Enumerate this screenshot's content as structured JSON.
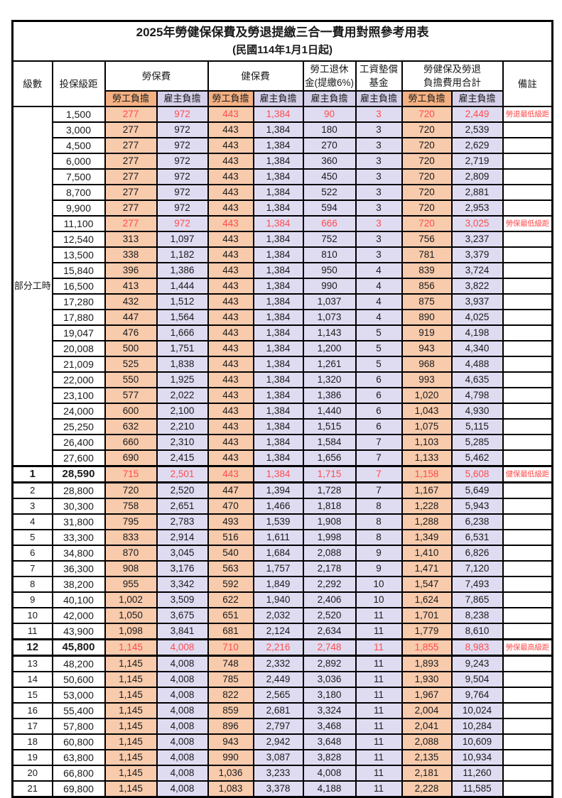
{
  "title": "2025年勞健保保費及勞退提繳三合一費用對照參考用表",
  "subtitle": "(民國114年1月1日起)",
  "header": {
    "level": "級數",
    "bracket": "投保級距",
    "labor_ins": "勞保費",
    "health_ins": "健保費",
    "pension_line1": "勞工退休",
    "pension_line2": "金(提繳6%)",
    "wage_fund_line1": "工資墊償",
    "wage_fund_line2": "基金",
    "total_line1": "勞健保及勞退",
    "total_line2": "負擔費用合計",
    "note": "備註",
    "employee": "勞工負擔",
    "employer": "雇主負擔"
  },
  "colors": {
    "sub_header_orange": "#F4B183",
    "sub_header_lavender": "#D6D0EA",
    "cell_orange": "#F8CBAD",
    "cell_lavender": "#DFDCF2",
    "red_text": "#FF4C4C",
    "border": "#000000"
  },
  "part_time_label": "部分工時",
  "rows": [
    {
      "level": "部分工時",
      "levelRowspan": 23,
      "bracket": "1,500",
      "values": [
        "277",
        "972",
        "443",
        "1,384",
        "90",
        "3",
        "720",
        "2,449"
      ],
      "note": "勞退最低級距",
      "red": true
    },
    {
      "bracket": "3,000",
      "values": [
        "277",
        "972",
        "443",
        "1,384",
        "180",
        "3",
        "720",
        "2,539"
      ],
      "note": ""
    },
    {
      "bracket": "4,500",
      "values": [
        "277",
        "972",
        "443",
        "1,384",
        "270",
        "3",
        "720",
        "2,629"
      ],
      "note": ""
    },
    {
      "bracket": "6,000",
      "values": [
        "277",
        "972",
        "443",
        "1,384",
        "360",
        "3",
        "720",
        "2,719"
      ],
      "note": ""
    },
    {
      "bracket": "7,500",
      "values": [
        "277",
        "972",
        "443",
        "1,384",
        "450",
        "3",
        "720",
        "2,809"
      ],
      "note": ""
    },
    {
      "bracket": "8,700",
      "values": [
        "277",
        "972",
        "443",
        "1,384",
        "522",
        "3",
        "720",
        "2,881"
      ],
      "note": ""
    },
    {
      "bracket": "9,900",
      "values": [
        "277",
        "972",
        "443",
        "1,384",
        "594",
        "3",
        "720",
        "2,953"
      ],
      "note": ""
    },
    {
      "bracket": "11,100",
      "values": [
        "277",
        "972",
        "443",
        "1,384",
        "666",
        "3",
        "720",
        "3,025"
      ],
      "note": "勞保最低級距",
      "red": true
    },
    {
      "bracket": "12,540",
      "values": [
        "313",
        "1,097",
        "443",
        "1,384",
        "752",
        "3",
        "756",
        "3,237"
      ],
      "note": ""
    },
    {
      "bracket": "13,500",
      "values": [
        "338",
        "1,182",
        "443",
        "1,384",
        "810",
        "3",
        "781",
        "3,379"
      ],
      "note": ""
    },
    {
      "bracket": "15,840",
      "values": [
        "396",
        "1,386",
        "443",
        "1,384",
        "950",
        "4",
        "839",
        "3,724"
      ],
      "note": ""
    },
    {
      "bracket": "16,500",
      "values": [
        "413",
        "1,444",
        "443",
        "1,384",
        "990",
        "4",
        "856",
        "3,822"
      ],
      "note": ""
    },
    {
      "bracket": "17,280",
      "values": [
        "432",
        "1,512",
        "443",
        "1,384",
        "1,037",
        "4",
        "875",
        "3,937"
      ],
      "note": ""
    },
    {
      "bracket": "17,880",
      "values": [
        "447",
        "1,564",
        "443",
        "1,384",
        "1,073",
        "4",
        "890",
        "4,025"
      ],
      "note": ""
    },
    {
      "bracket": "19,047",
      "values": [
        "476",
        "1,666",
        "443",
        "1,384",
        "1,143",
        "5",
        "919",
        "4,198"
      ],
      "note": ""
    },
    {
      "bracket": "20,008",
      "values": [
        "500",
        "1,751",
        "443",
        "1,384",
        "1,200",
        "5",
        "943",
        "4,340"
      ],
      "note": ""
    },
    {
      "bracket": "21,009",
      "values": [
        "525",
        "1,838",
        "443",
        "1,384",
        "1,261",
        "5",
        "968",
        "4,488"
      ],
      "note": ""
    },
    {
      "bracket": "22,000",
      "values": [
        "550",
        "1,925",
        "443",
        "1,384",
        "1,320",
        "6",
        "993",
        "4,635"
      ],
      "note": ""
    },
    {
      "bracket": "23,100",
      "values": [
        "577",
        "2,022",
        "443",
        "1,384",
        "1,386",
        "6",
        "1,020",
        "4,798"
      ],
      "note": ""
    },
    {
      "bracket": "24,000",
      "values": [
        "600",
        "2,100",
        "443",
        "1,384",
        "1,440",
        "6",
        "1,043",
        "4,930"
      ],
      "note": ""
    },
    {
      "bracket": "25,250",
      "values": [
        "632",
        "2,210",
        "443",
        "1,384",
        "1,515",
        "6",
        "1,075",
        "5,115"
      ],
      "note": ""
    },
    {
      "bracket": "26,400",
      "values": [
        "660",
        "2,310",
        "443",
        "1,384",
        "1,584",
        "7",
        "1,103",
        "5,285"
      ],
      "note": ""
    },
    {
      "bracket": "27,600",
      "values": [
        "690",
        "2,415",
        "443",
        "1,384",
        "1,656",
        "7",
        "1,133",
        "5,462"
      ],
      "note": ""
    },
    {
      "level": "1",
      "bracket": "28,590",
      "values": [
        "715",
        "2,501",
        "443",
        "1,384",
        "1,715",
        "7",
        "1,158",
        "5,608"
      ],
      "note": "健保最低級距",
      "red": true,
      "key": true
    },
    {
      "level": "2",
      "bracket": "28,800",
      "values": [
        "720",
        "2,520",
        "447",
        "1,394",
        "1,728",
        "7",
        "1,167",
        "5,649"
      ],
      "note": ""
    },
    {
      "level": "3",
      "bracket": "30,300",
      "values": [
        "758",
        "2,651",
        "470",
        "1,466",
        "1,818",
        "8",
        "1,228",
        "5,943"
      ],
      "note": ""
    },
    {
      "level": "4",
      "bracket": "31,800",
      "values": [
        "795",
        "2,783",
        "493",
        "1,539",
        "1,908",
        "8",
        "1,288",
        "6,238"
      ],
      "note": ""
    },
    {
      "level": "5",
      "bracket": "33,300",
      "values": [
        "833",
        "2,914",
        "516",
        "1,611",
        "1,998",
        "8",
        "1,349",
        "6,531"
      ],
      "note": ""
    },
    {
      "level": "6",
      "bracket": "34,800",
      "values": [
        "870",
        "3,045",
        "540",
        "1,684",
        "2,088",
        "9",
        "1,410",
        "6,826"
      ],
      "note": ""
    },
    {
      "level": "7",
      "bracket": "36,300",
      "values": [
        "908",
        "3,176",
        "563",
        "1,757",
        "2,178",
        "9",
        "1,471",
        "7,120"
      ],
      "note": ""
    },
    {
      "level": "8",
      "bracket": "38,200",
      "values": [
        "955",
        "3,342",
        "592",
        "1,849",
        "2,292",
        "10",
        "1,547",
        "7,493"
      ],
      "note": ""
    },
    {
      "level": "9",
      "bracket": "40,100",
      "values": [
        "1,002",
        "3,509",
        "622",
        "1,940",
        "2,406",
        "10",
        "1,624",
        "7,865"
      ],
      "note": ""
    },
    {
      "level": "10",
      "bracket": "42,000",
      "values": [
        "1,050",
        "3,675",
        "651",
        "2,032",
        "2,520",
        "11",
        "1,701",
        "8,238"
      ],
      "note": ""
    },
    {
      "level": "11",
      "bracket": "43,900",
      "values": [
        "1,098",
        "3,841",
        "681",
        "2,124",
        "2,634",
        "11",
        "1,779",
        "8,610"
      ],
      "note": ""
    },
    {
      "level": "12",
      "bracket": "45,800",
      "values": [
        "1,145",
        "4,008",
        "710",
        "2,216",
        "2,748",
        "11",
        "1,855",
        "8,983"
      ],
      "note": "勞保最高級距",
      "red": true,
      "key": true
    },
    {
      "level": "13",
      "bracket": "48,200",
      "values": [
        "1,145",
        "4,008",
        "748",
        "2,332",
        "2,892",
        "11",
        "1,893",
        "9,243"
      ],
      "note": ""
    },
    {
      "level": "14",
      "bracket": "50,600",
      "values": [
        "1,145",
        "4,008",
        "785",
        "2,449",
        "3,036",
        "11",
        "1,930",
        "9,504"
      ],
      "note": ""
    },
    {
      "level": "15",
      "bracket": "53,000",
      "values": [
        "1,145",
        "4,008",
        "822",
        "2,565",
        "3,180",
        "11",
        "1,967",
        "9,764"
      ],
      "note": ""
    },
    {
      "level": "16",
      "bracket": "55,400",
      "values": [
        "1,145",
        "4,008",
        "859",
        "2,681",
        "3,324",
        "11",
        "2,004",
        "10,024"
      ],
      "note": ""
    },
    {
      "level": "17",
      "bracket": "57,800",
      "values": [
        "1,145",
        "4,008",
        "896",
        "2,797",
        "3,468",
        "11",
        "2,041",
        "10,284"
      ],
      "note": ""
    },
    {
      "level": "18",
      "bracket": "60,800",
      "values": [
        "1,145",
        "4,008",
        "943",
        "2,942",
        "3,648",
        "11",
        "2,088",
        "10,609"
      ],
      "note": ""
    },
    {
      "level": "19",
      "bracket": "63,800",
      "values": [
        "1,145",
        "4,008",
        "990",
        "3,087",
        "3,828",
        "11",
        "2,135",
        "10,934"
      ],
      "note": ""
    },
    {
      "level": "20",
      "bracket": "66,800",
      "values": [
        "1,145",
        "4,008",
        "1,036",
        "3,233",
        "4,008",
        "11",
        "2,181",
        "11,260"
      ],
      "note": ""
    },
    {
      "level": "21",
      "bracket": "69,800",
      "values": [
        "1,145",
        "4,008",
        "1,083",
        "3,378",
        "4,188",
        "11",
        "2,228",
        "11,585"
      ],
      "note": ""
    }
  ]
}
